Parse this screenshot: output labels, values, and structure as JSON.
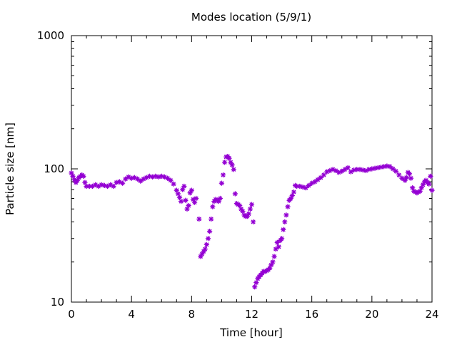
{
  "chart_data": {
    "type": "scatter",
    "title": "Modes location (5/9/1)",
    "xlabel": "Time [hour]",
    "ylabel": "Particle size [nm]",
    "xlim": [
      0,
      24
    ],
    "ylim": [
      10,
      1000
    ],
    "yscale": "log",
    "x_ticks": [
      0,
      4,
      8,
      12,
      16,
      20,
      24
    ],
    "x_tick_labels": [
      "0",
      "4",
      "8",
      "12",
      "16",
      "20",
      "24"
    ],
    "y_ticks": [
      10,
      100,
      1000
    ],
    "y_tick_labels": [
      "10",
      "100",
      "1000"
    ],
    "grid": false,
    "legend": "none",
    "marker_color": "#9400d3",
    "marker": "asterisk",
    "series": [
      {
        "points": [
          [
            0.0,
            93
          ],
          [
            0.1,
            88
          ],
          [
            0.2,
            83
          ],
          [
            0.3,
            79
          ],
          [
            0.4,
            82
          ],
          [
            0.5,
            86
          ],
          [
            0.6,
            88
          ],
          [
            0.7,
            90
          ],
          [
            0.8,
            88
          ],
          [
            0.9,
            79
          ],
          [
            1.0,
            74
          ],
          [
            1.2,
            74
          ],
          [
            1.4,
            74
          ],
          [
            1.6,
            76
          ],
          [
            1.8,
            74
          ],
          [
            2.0,
            76
          ],
          [
            2.2,
            75
          ],
          [
            2.4,
            74
          ],
          [
            2.6,
            76
          ],
          [
            2.8,
            74
          ],
          [
            3.0,
            79
          ],
          [
            3.2,
            80
          ],
          [
            3.4,
            78
          ],
          [
            3.6,
            84
          ],
          [
            3.8,
            87
          ],
          [
            4.0,
            85
          ],
          [
            4.2,
            86
          ],
          [
            4.4,
            84
          ],
          [
            4.6,
            81
          ],
          [
            4.8,
            84
          ],
          [
            5.0,
            86
          ],
          [
            5.2,
            88
          ],
          [
            5.4,
            87
          ],
          [
            5.6,
            88
          ],
          [
            5.8,
            87
          ],
          [
            6.0,
            88
          ],
          [
            6.2,
            87
          ],
          [
            6.4,
            85
          ],
          [
            6.6,
            82
          ],
          [
            6.8,
            77
          ],
          [
            7.0,
            69
          ],
          [
            7.1,
            65
          ],
          [
            7.2,
            61
          ],
          [
            7.3,
            57
          ],
          [
            7.4,
            70
          ],
          [
            7.5,
            74
          ],
          [
            7.6,
            58
          ],
          [
            7.7,
            50
          ],
          [
            7.8,
            53
          ],
          [
            7.9,
            66
          ],
          [
            8.0,
            69
          ],
          [
            8.1,
            59
          ],
          [
            8.2,
            56
          ],
          [
            8.3,
            60
          ],
          [
            8.5,
            42
          ],
          [
            8.6,
            22
          ],
          [
            8.7,
            23
          ],
          [
            8.8,
            24
          ],
          [
            8.9,
            25
          ],
          [
            9.0,
            27
          ],
          [
            9.1,
            30
          ],
          [
            9.2,
            34
          ],
          [
            9.3,
            42
          ],
          [
            9.4,
            52
          ],
          [
            9.5,
            57
          ],
          [
            9.6,
            59
          ],
          [
            9.7,
            58
          ],
          [
            9.8,
            57
          ],
          [
            9.9,
            60
          ],
          [
            10.0,
            78
          ],
          [
            10.1,
            90
          ],
          [
            10.2,
            112
          ],
          [
            10.3,
            123
          ],
          [
            10.4,
            124
          ],
          [
            10.5,
            120
          ],
          [
            10.6,
            112
          ],
          [
            10.7,
            107
          ],
          [
            10.8,
            99
          ],
          [
            10.9,
            65
          ],
          [
            11.0,
            55
          ],
          [
            11.1,
            54
          ],
          [
            11.2,
            53
          ],
          [
            11.3,
            50
          ],
          [
            11.4,
            48
          ],
          [
            11.5,
            45
          ],
          [
            11.6,
            44
          ],
          [
            11.7,
            44
          ],
          [
            11.8,
            46
          ],
          [
            11.9,
            50
          ],
          [
            12.0,
            54
          ],
          [
            12.1,
            40
          ],
          [
            12.2,
            13
          ],
          [
            12.3,
            14
          ],
          [
            12.4,
            15
          ],
          [
            12.5,
            15.5
          ],
          [
            12.6,
            16
          ],
          [
            12.7,
            16.5
          ],
          [
            12.8,
            17
          ],
          [
            12.9,
            17
          ],
          [
            13.0,
            17.2
          ],
          [
            13.1,
            17.5
          ],
          [
            13.2,
            18
          ],
          [
            13.3,
            19
          ],
          [
            13.4,
            20
          ],
          [
            13.5,
            22
          ],
          [
            13.6,
            25
          ],
          [
            13.7,
            28
          ],
          [
            13.8,
            26
          ],
          [
            13.9,
            29
          ],
          [
            14.0,
            30
          ],
          [
            14.1,
            35
          ],
          [
            14.2,
            40
          ],
          [
            14.3,
            45
          ],
          [
            14.4,
            52
          ],
          [
            14.5,
            58
          ],
          [
            14.6,
            60
          ],
          [
            14.7,
            63
          ],
          [
            14.8,
            67
          ],
          [
            14.9,
            75
          ],
          [
            15.0,
            74
          ],
          [
            15.2,
            74
          ],
          [
            15.4,
            73
          ],
          [
            15.6,
            72
          ],
          [
            15.8,
            75
          ],
          [
            16.0,
            78
          ],
          [
            16.2,
            80
          ],
          [
            16.4,
            83
          ],
          [
            16.6,
            86
          ],
          [
            16.8,
            90
          ],
          [
            17.0,
            95
          ],
          [
            17.2,
            97
          ],
          [
            17.4,
            99
          ],
          [
            17.6,
            97
          ],
          [
            17.8,
            94
          ],
          [
            18.0,
            96
          ],
          [
            18.2,
            99
          ],
          [
            18.4,
            102
          ],
          [
            18.6,
            95
          ],
          [
            18.8,
            98
          ],
          [
            19.0,
            99
          ],
          [
            19.2,
            99
          ],
          [
            19.4,
            98
          ],
          [
            19.6,
            97
          ],
          [
            19.8,
            99
          ],
          [
            20.0,
            100
          ],
          [
            20.2,
            101
          ],
          [
            20.4,
            102
          ],
          [
            20.6,
            103
          ],
          [
            20.8,
            104
          ],
          [
            21.0,
            105
          ],
          [
            21.2,
            104
          ],
          [
            21.4,
            100
          ],
          [
            21.6,
            96
          ],
          [
            21.8,
            90
          ],
          [
            22.0,
            85
          ],
          [
            22.2,
            82
          ],
          [
            22.3,
            86
          ],
          [
            22.4,
            94
          ],
          [
            22.5,
            92
          ],
          [
            22.6,
            85
          ],
          [
            22.7,
            72
          ],
          [
            22.8,
            68
          ],
          [
            22.9,
            67
          ],
          [
            23.0,
            66
          ],
          [
            23.1,
            67
          ],
          [
            23.2,
            68
          ],
          [
            23.3,
            72
          ],
          [
            23.4,
            76
          ],
          [
            23.5,
            80
          ],
          [
            23.6,
            82
          ],
          [
            23.7,
            79
          ],
          [
            23.8,
            77
          ],
          [
            23.9,
            88
          ],
          [
            24.0,
            69
          ]
        ]
      }
    ]
  }
}
